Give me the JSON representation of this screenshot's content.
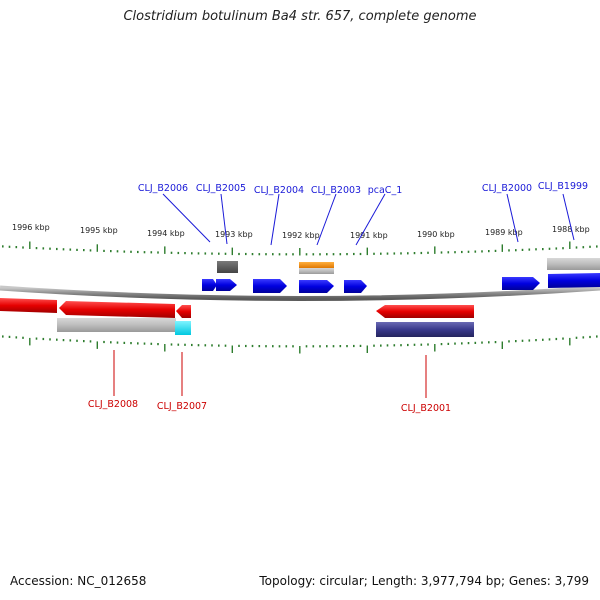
{
  "title": "Clostridium botulinum Ba4 str. 657, complete genome",
  "accession": "Accession: NC_012658",
  "summary": "Topology: circular; Length: 3,977,794 bp; Genes: 3,799",
  "kbp_labels": [
    "1996 kbp",
    "1995 kbp",
    "1994 kbp",
    "1993 kbp",
    "1992 kbp",
    "1991 kbp",
    "1990 kbp",
    "1989 kbp",
    "1988 kbp"
  ],
  "top_labels": [
    "CLJ_B2006",
    "CLJ_B2005",
    "CLJ_B2004",
    "CLJ_B2003",
    "pcaC_1",
    "CLJ_B2000",
    "CLJ_B1999"
  ],
  "bottom_labels": [
    "CLJ_B2008",
    "CLJ_B2007",
    "CLJ_B2001"
  ],
  "colors": {
    "forward_gene": "#0000e0",
    "reverse_gene": "#e60000",
    "top_label": "#1a1ad8",
    "bottom_label": "#cc0000",
    "backbone": "#888888",
    "ticks": "#2e7d2e",
    "orange_feature": "#ff8c00",
    "dark_gray_feature": "#555555",
    "navy_feature": "#3a3a8c",
    "cyan_feature": "#00e5ff"
  }
}
